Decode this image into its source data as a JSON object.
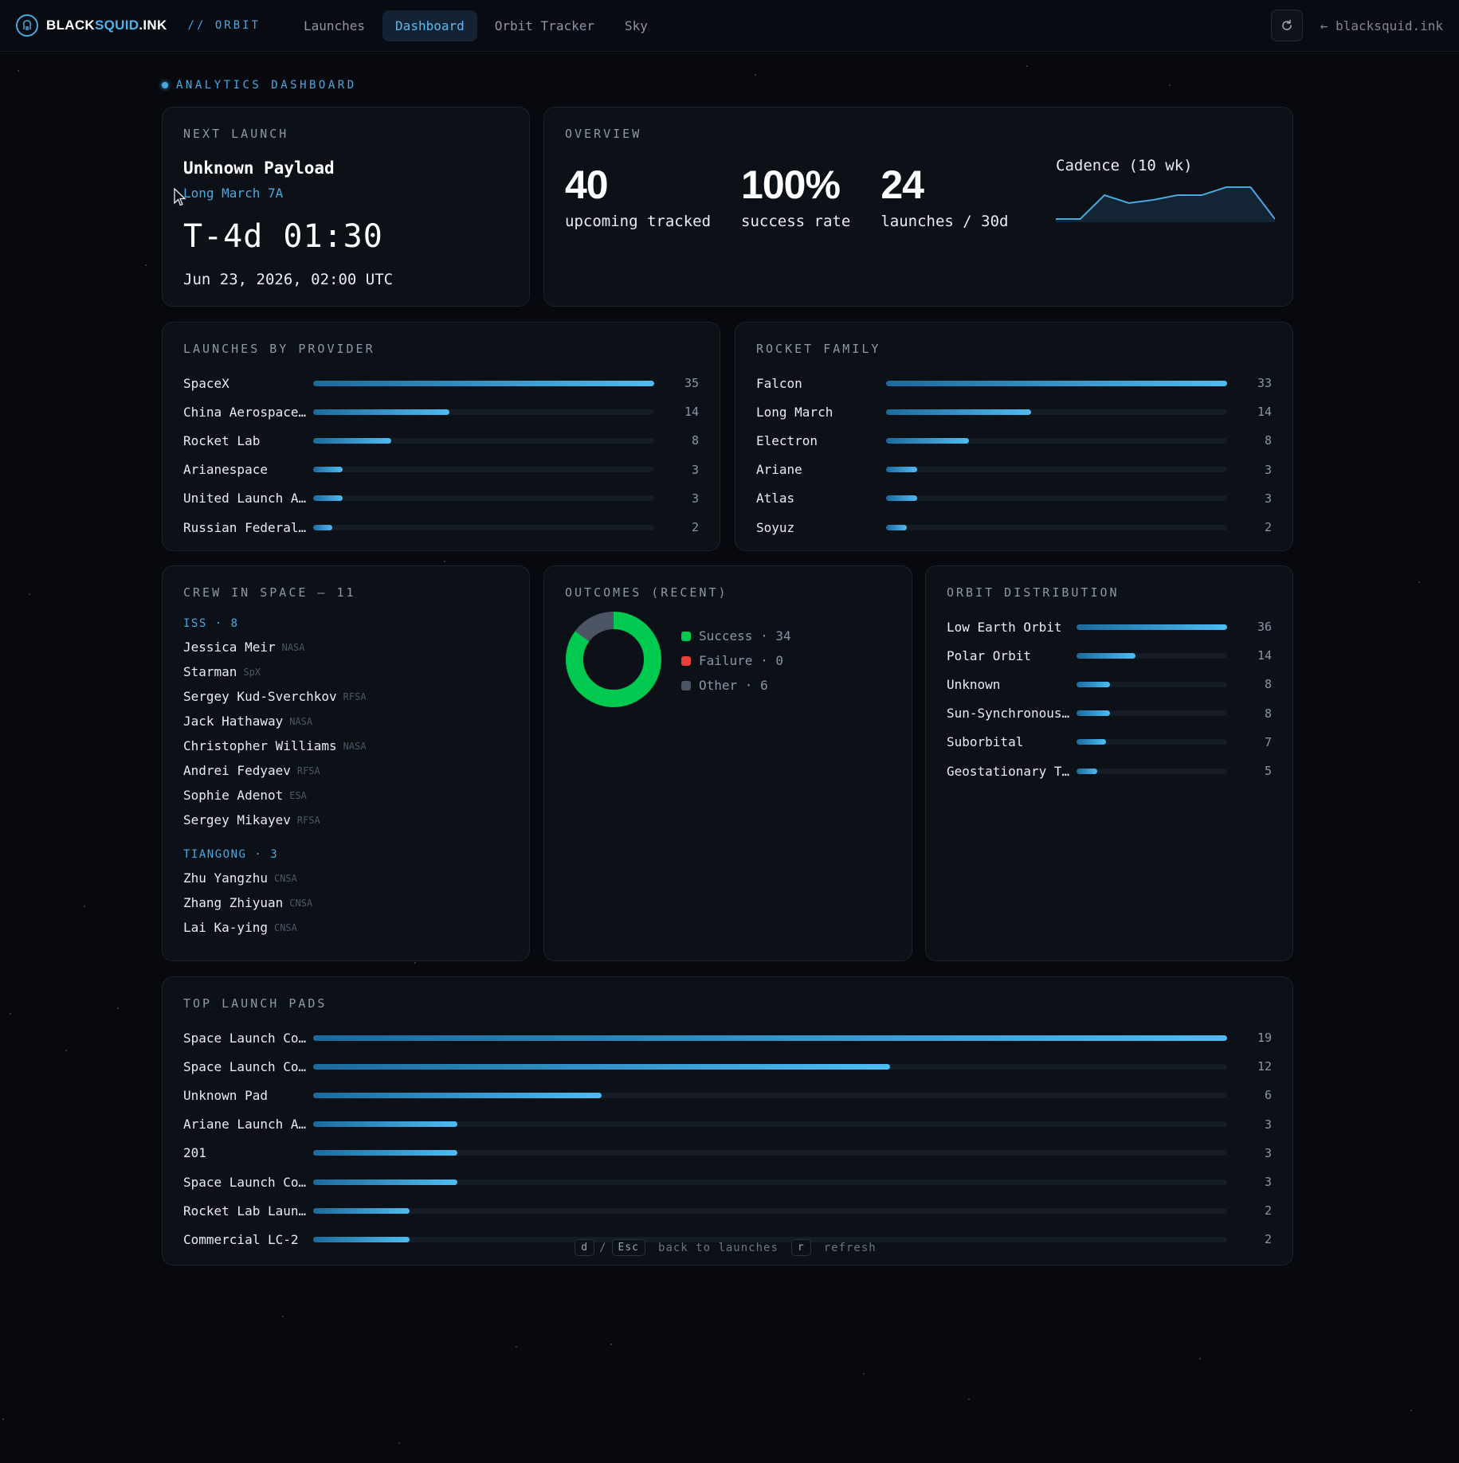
{
  "nav": {
    "brand_a": "BLACK",
    "brand_b": "SQUID",
    "brand_c": ".INK",
    "section_tag": "// ORBIT",
    "items": [
      {
        "label": "Launches",
        "active": false
      },
      {
        "label": "Dashboard",
        "active": true
      },
      {
        "label": "Orbit Tracker",
        "active": false
      },
      {
        "label": "Sky",
        "active": false
      }
    ],
    "home_link": "← blacksquid.ink"
  },
  "eyebrow": "ANALYTICS DASHBOARD",
  "next_launch": {
    "title": "NEXT LAUNCH",
    "payload": "Unknown Payload",
    "rocket": "Long March 7A",
    "countdown": "T-4d 01:30",
    "date": "Jun 23, 2026, 02:00 UTC"
  },
  "overview": {
    "title": "OVERVIEW",
    "stats": [
      {
        "value": "40",
        "label": "upcoming tracked"
      },
      {
        "value": "100%",
        "label": "success rate"
      },
      {
        "value": "24",
        "label": "launches / 30d"
      }
    ],
    "cadence_label": "Cadence (10 wk)",
    "cadence_values": [
      0,
      0,
      3,
      2,
      2.4,
      3,
      3,
      4,
      4,
      0
    ]
  },
  "providers": {
    "title": "LAUNCHES BY PROVIDER",
    "max": 35,
    "rows": [
      {
        "label": "SpaceX",
        "value": 35
      },
      {
        "label": "China Aerospace…",
        "value": 14
      },
      {
        "label": "Rocket Lab",
        "value": 8
      },
      {
        "label": "Arianespace",
        "value": 3
      },
      {
        "label": "United Launch A…",
        "value": 3
      },
      {
        "label": "Russian Federal…",
        "value": 2
      }
    ]
  },
  "families": {
    "title": "ROCKET FAMILY",
    "max": 33,
    "rows": [
      {
        "label": "Falcon",
        "value": 33
      },
      {
        "label": "Long March",
        "value": 14
      },
      {
        "label": "Electron",
        "value": 8
      },
      {
        "label": "Ariane",
        "value": 3
      },
      {
        "label": "Atlas",
        "value": 3
      },
      {
        "label": "Soyuz",
        "value": 2
      }
    ]
  },
  "crew": {
    "title": "CREW IN SPACE — 11",
    "groups": [
      {
        "label": "ISS · 8",
        "members": [
          {
            "name": "Jessica Meir",
            "agency": "NASA"
          },
          {
            "name": "Starman",
            "agency": "SpX"
          },
          {
            "name": "Sergey Kud-Sverchkov",
            "agency": "RFSA"
          },
          {
            "name": "Jack Hathaway",
            "agency": "NASA"
          },
          {
            "name": "Christopher Williams",
            "agency": "NASA"
          },
          {
            "name": "Andrei Fedyaev",
            "agency": "RFSA"
          },
          {
            "name": "Sophie Adenot",
            "agency": "ESA"
          },
          {
            "name": "Sergey Mikayev",
            "agency": "RFSA"
          }
        ]
      },
      {
        "label": "TIANGONG · 3",
        "members": [
          {
            "name": "Zhu Yangzhu",
            "agency": "CNSA"
          },
          {
            "name": "Zhang Zhiyuan",
            "agency": "CNSA"
          },
          {
            "name": "Lai Ka-ying",
            "agency": "CNSA"
          }
        ]
      }
    ]
  },
  "outcomes": {
    "title": "OUTCOMES (RECENT)",
    "items": [
      {
        "label": "Success · 34",
        "value": 34,
        "color": "#00c950"
      },
      {
        "label": "Failure · 0",
        "value": 0,
        "color": "#e5413a"
      },
      {
        "label": "Other · 6",
        "value": 6,
        "color": "#4b5563"
      }
    ]
  },
  "orbits": {
    "title": "ORBIT DISTRIBUTION",
    "max": 36,
    "rows": [
      {
        "label": "Low Earth Orbit",
        "value": 36
      },
      {
        "label": "Polar Orbit",
        "value": 14
      },
      {
        "label": "Unknown",
        "value": 8
      },
      {
        "label": "Sun-Synchronous…",
        "value": 8
      },
      {
        "label": "Suborbital",
        "value": 7
      },
      {
        "label": "Geostationary T…",
        "value": 5
      }
    ]
  },
  "pads": {
    "title": "TOP LAUNCH PADS",
    "max": 19,
    "rows": [
      {
        "label": "Space Launch Co…",
        "value": 19
      },
      {
        "label": "Space Launch Co…",
        "value": 12
      },
      {
        "label": "Unknown Pad",
        "value": 6
      },
      {
        "label": "Ariane Launch A…",
        "value": 3
      },
      {
        "label": "201",
        "value": 3
      },
      {
        "label": "Space Launch Co…",
        "value": 3
      },
      {
        "label": "Rocket Lab Laun…",
        "value": 2
      },
      {
        "label": "Commercial LC-2",
        "value": 2
      }
    ]
  },
  "footer": {
    "key_d": "d",
    "sep": "/",
    "key_esc": "Esc",
    "back_text": "back to launches",
    "key_r": "r",
    "refresh_text": "refresh"
  },
  "colors": {
    "accent": "#4aa8e0",
    "success": "#00c950",
    "failure": "#e5413a",
    "other": "#4b5563"
  },
  "icons": [
    "squid-logo-icon",
    "refresh-icon",
    "cursor-icon"
  ]
}
